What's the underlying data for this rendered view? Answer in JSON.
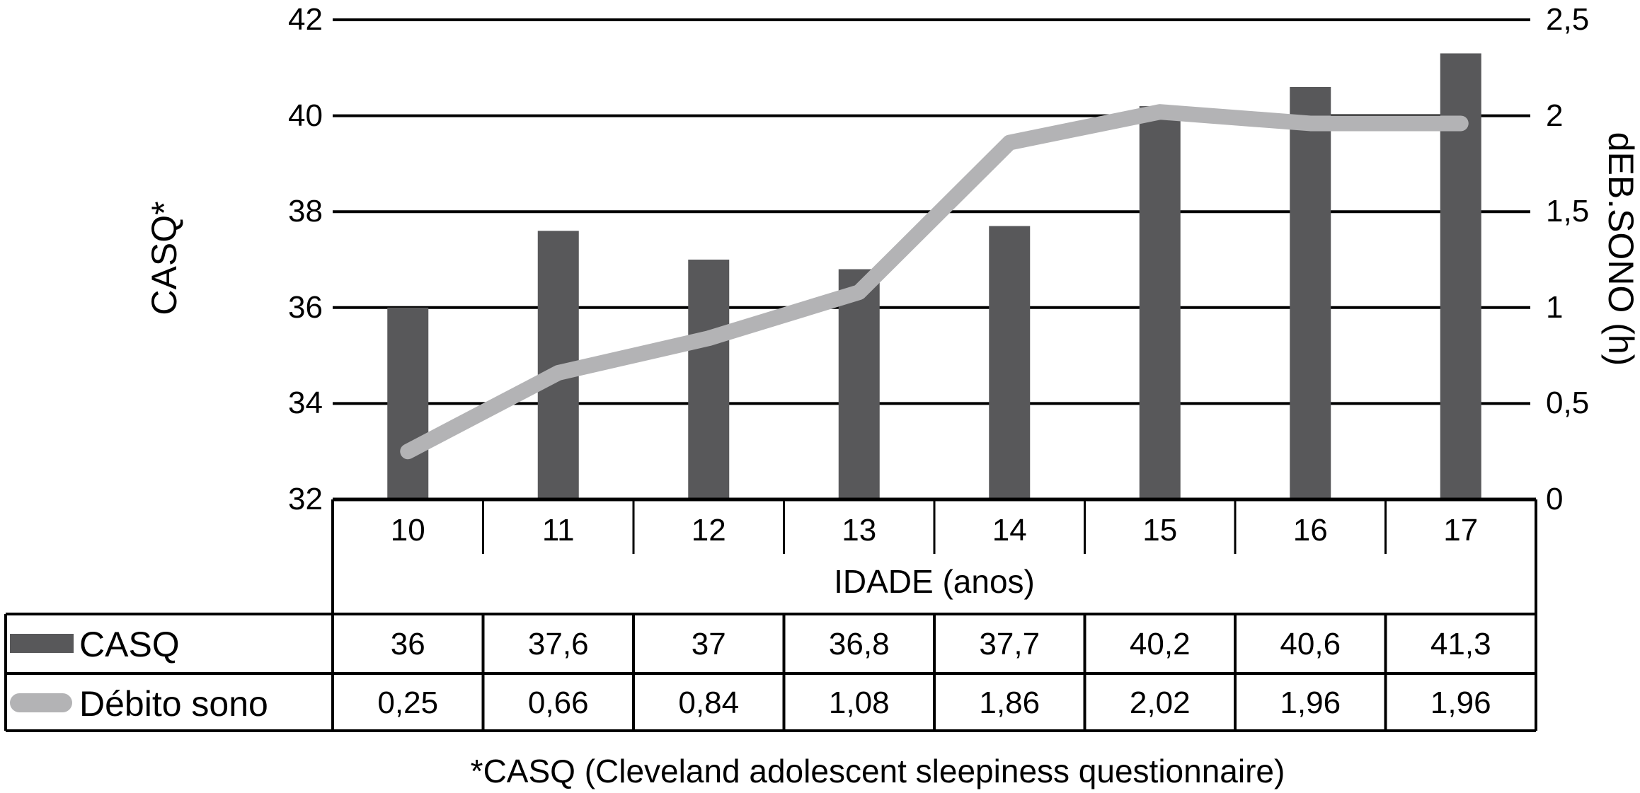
{
  "colors": {
    "bar": "#58585a",
    "line": "#b3b3b5",
    "ink": "#000000",
    "background": "#ffffff"
  },
  "chart_data": {
    "type": "combo-bar-line",
    "categories": [
      10,
      11,
      12,
      13,
      14,
      15,
      16,
      17
    ],
    "series": [
      {
        "name": "CASQ",
        "type": "bar",
        "axis": "left",
        "color": "#58585a",
        "values": [
          36,
          37.6,
          37,
          36.8,
          37.7,
          40.2,
          40.6,
          41.3
        ]
      },
      {
        "name": "Débito sono",
        "type": "line",
        "axis": "right",
        "color": "#b3b3b5",
        "values": [
          0.25,
          0.66,
          0.84,
          1.08,
          1.86,
          2.02,
          1.96,
          1.96
        ]
      }
    ],
    "left_axis": {
      "label": "CASQ*",
      "min": 32,
      "max": 42,
      "ticks": [
        32,
        34,
        36,
        38,
        40,
        42
      ],
      "tick_labels": [
        "32",
        "34",
        "36",
        "38",
        "40",
        "42"
      ]
    },
    "right_axis": {
      "label": "dEB.SONO (h)",
      "min": 0,
      "max": 2.5,
      "ticks": [
        0,
        0.5,
        1,
        1.5,
        2,
        2.5
      ],
      "tick_labels": [
        "0",
        "0,5",
        "1",
        "1,5",
        "2",
        "2,5"
      ]
    },
    "x_axis_label": "IDADE (anos)",
    "grid": true,
    "legend_position": "table-left"
  },
  "table": {
    "age_values": [
      "10",
      "11",
      "12",
      "13",
      "14",
      "15",
      "16",
      "17"
    ],
    "row_labels": [
      "CASQ",
      "Débito sono"
    ],
    "casq_values": [
      "36",
      "37,6",
      "37",
      "36,8",
      "37,7",
      "40,2",
      "40,6",
      "41,3"
    ],
    "debito_values": [
      "0,25",
      "0,66",
      "0,84",
      "1,08",
      "1,86",
      "2,02",
      "1,96",
      "1,96"
    ]
  },
  "footnote": "*CASQ (Cleveland adolescent sleepiness questionnaire)"
}
